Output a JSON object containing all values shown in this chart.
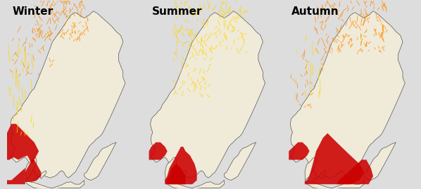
{
  "panels": [
    {
      "title": "Winter"
    },
    {
      "title": "Summer"
    },
    {
      "title": "Autumn"
    }
  ],
  "background_sea": "#b8c4d8",
  "background_land": "#f0ead8",
  "border_color": "#222222",
  "title_fontsize": 11,
  "title_fontweight": "bold",
  "title_color": "#000000",
  "fig_width": 5.98,
  "fig_height": 2.69,
  "dpi": 100,
  "colors": {
    "orange": "#FF8C00",
    "yellow": "#FFD700",
    "red": "#CC0000",
    "dark_red": "#990000"
  },
  "lon_min": 4,
  "lon_max": 32,
  "lat_min": 54,
  "lat_max": 72,
  "panel_divider_color": "#ffffff"
}
